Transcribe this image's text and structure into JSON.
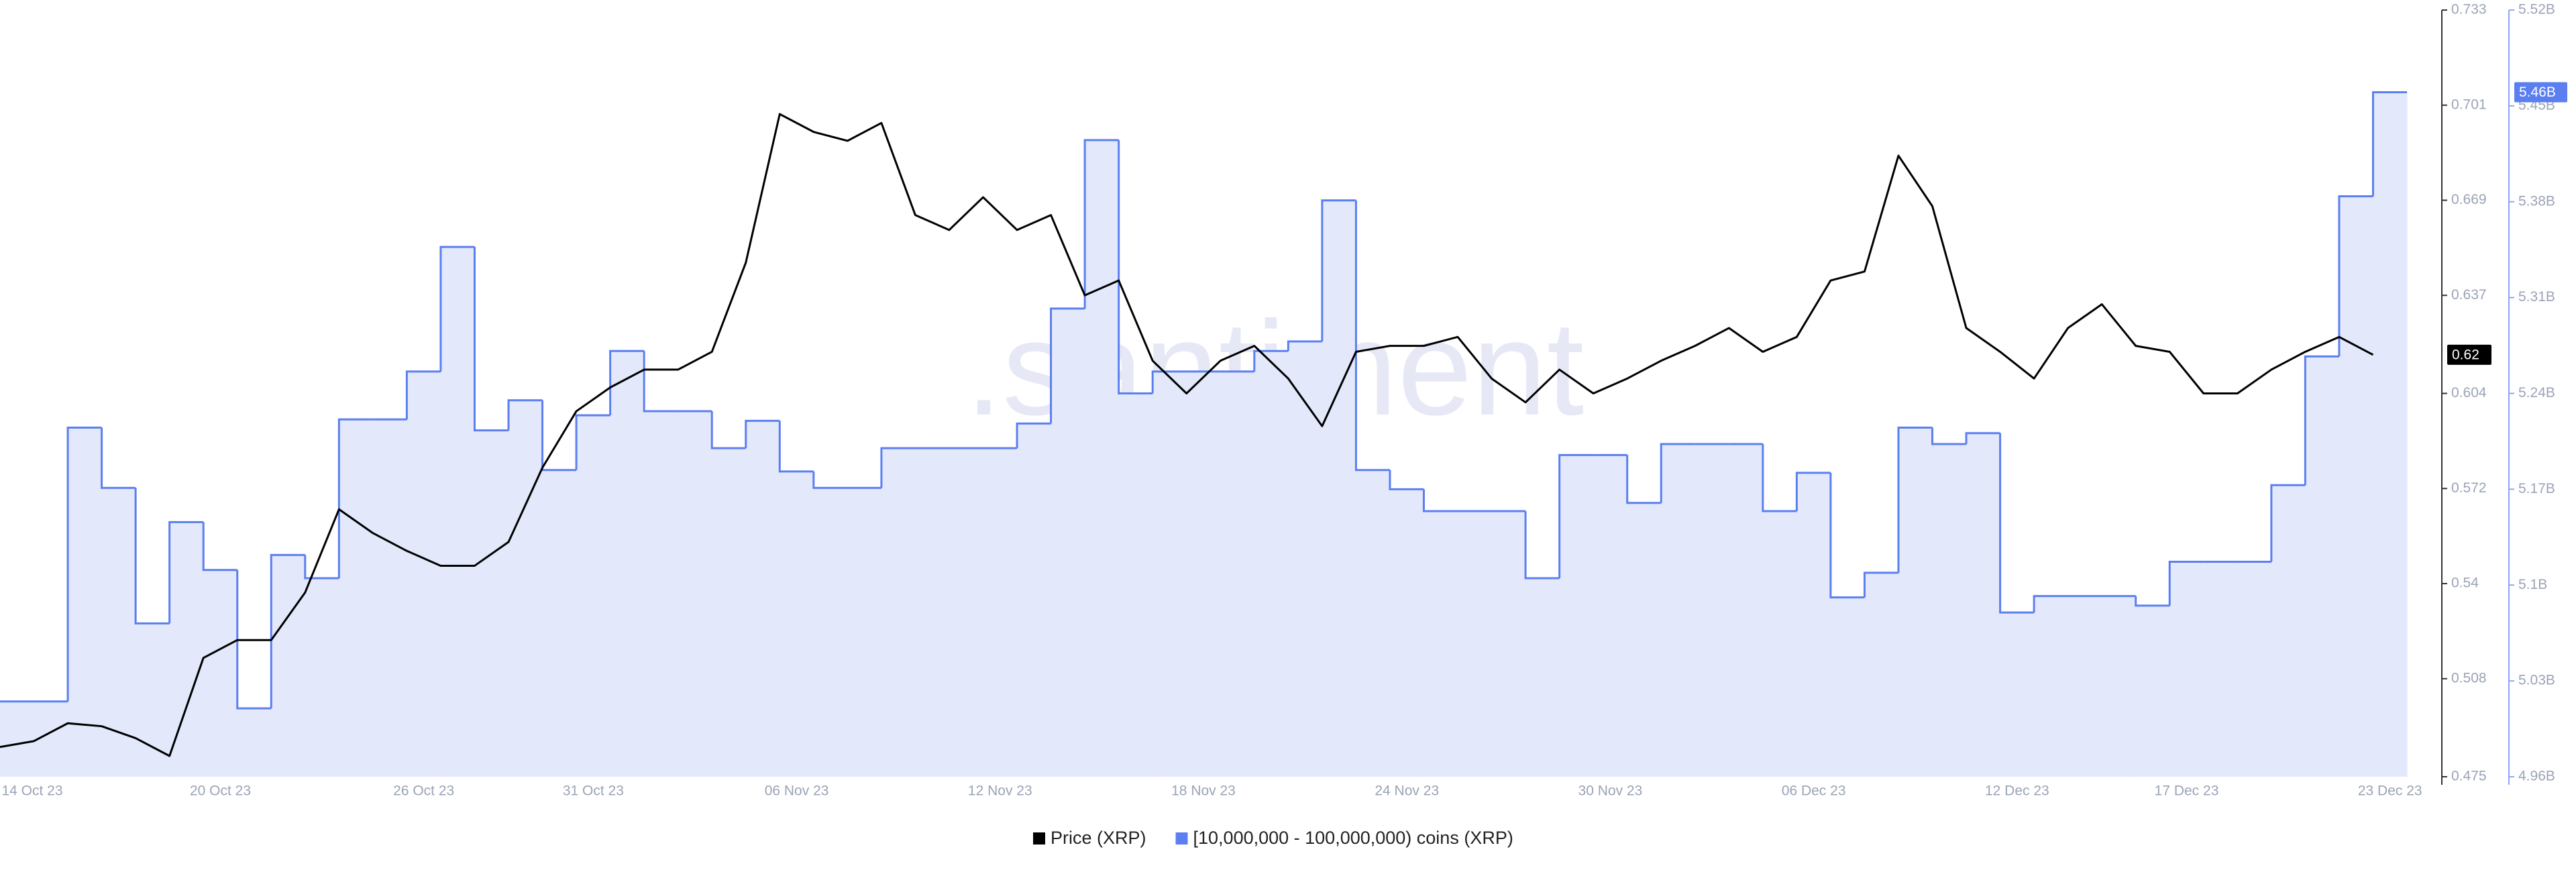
{
  "chart_data": {
    "type": "line",
    "watermark": ".santiment",
    "x": [
      "14 Oct 23",
      "15 Oct 23",
      "16 Oct 23",
      "17 Oct 23",
      "18 Oct 23",
      "19 Oct 23",
      "20 Oct 23",
      "21 Oct 23",
      "22 Oct 23",
      "23 Oct 23",
      "24 Oct 23",
      "25 Oct 23",
      "26 Oct 23",
      "27 Oct 23",
      "28 Oct 23",
      "29 Oct 23",
      "30 Oct 23",
      "31 Oct 23",
      "01 Nov 23",
      "02 Nov 23",
      "03 Nov 23",
      "04 Nov 23",
      "05 Nov 23",
      "06 Nov 23",
      "07 Nov 23",
      "08 Nov 23",
      "09 Nov 23",
      "10 Nov 23",
      "11 Nov 23",
      "12 Nov 23",
      "13 Nov 23",
      "14 Nov 23",
      "15 Nov 23",
      "16 Nov 23",
      "17 Nov 23",
      "18 Nov 23",
      "19 Nov 23",
      "20 Nov 23",
      "21 Nov 23",
      "22 Nov 23",
      "23 Nov 23",
      "24 Nov 23",
      "25 Nov 23",
      "26 Nov 23",
      "27 Nov 23",
      "28 Nov 23",
      "29 Nov 23",
      "30 Nov 23",
      "01 Dec 23",
      "02 Dec 23",
      "03 Dec 23",
      "04 Dec 23",
      "05 Dec 23",
      "06 Dec 23",
      "07 Dec 23",
      "08 Dec 23",
      "09 Dec 23",
      "10 Dec 23",
      "11 Dec 23",
      "12 Dec 23",
      "13 Dec 23",
      "14 Dec 23",
      "15 Dec 23",
      "16 Dec 23",
      "17 Dec 23",
      "18 Dec 23",
      "19 Dec 23",
      "20 Dec 23",
      "21 Dec 23",
      "22 Dec 23",
      "23 Dec 23"
    ],
    "xticks": [
      "14 Oct 23",
      "20 Oct 23",
      "26 Oct 23",
      "31 Oct 23",
      "06 Nov 23",
      "12 Nov 23",
      "18 Nov 23",
      "24 Nov 23",
      "30 Nov 23",
      "06 Dec 23",
      "12 Dec 23",
      "17 Dec 23",
      "23 Dec 23"
    ],
    "series": [
      {
        "name": "Price (XRP)",
        "color": "#000000",
        "axis": "y",
        "end_label": "0.62",
        "values": [
          0.485,
          0.487,
          0.493,
          0.492,
          0.488,
          0.482,
          0.515,
          0.521,
          0.521,
          0.537,
          0.565,
          0.557,
          0.551,
          0.546,
          0.546,
          0.554,
          0.579,
          0.598,
          0.606,
          0.612,
          0.612,
          0.618,
          0.648,
          0.698,
          0.692,
          0.689,
          0.695,
          0.664,
          0.659,
          0.67,
          0.659,
          0.664,
          0.637,
          0.642,
          0.615,
          0.604,
          0.615,
          0.62,
          0.609,
          0.593,
          0.618,
          0.62,
          0.62,
          0.623,
          0.609,
          0.601,
          0.612,
          0.604,
          0.609,
          0.615,
          0.62,
          0.626,
          0.618,
          0.623,
          0.642,
          0.645,
          0.684,
          0.667,
          0.626,
          0.618,
          0.609,
          0.626,
          0.634,
          0.62,
          0.618,
          0.604,
          0.604,
          0.612,
          0.618,
          0.623,
          0.617
        ]
      },
      {
        "name": "[10,000,000 - 100,000,000) coins (XRP)",
        "color": "#5b7ff0",
        "fill": "#e3e9fb",
        "step": true,
        "axis": "y2",
        "end_label": "5.46B",
        "values": [
          5015000000,
          5015000000,
          5215000000,
          5171000000,
          5072000000,
          5146000000,
          5111000000,
          5010000000,
          5122000000,
          5105000000,
          5221000000,
          5221000000,
          5256000000,
          5347000000,
          5213000000,
          5235000000,
          5184000000,
          5224000000,
          5271000000,
          5227000000,
          5227000000,
          5200000000,
          5220000000,
          5183000000,
          5171000000,
          5171000000,
          5200000000,
          5200000000,
          5200000000,
          5200000000,
          5218000000,
          5302000000,
          5425000000,
          5240000000,
          5256000000,
          5256000000,
          5256000000,
          5271000000,
          5278000000,
          5381000000,
          5184000000,
          5170000000,
          5154000000,
          5154000000,
          5154000000,
          5105000000,
          5195000000,
          5195000000,
          5160000000,
          5203000000,
          5203000000,
          5203000000,
          5154000000,
          5182000000,
          5091000000,
          5109000000,
          5215000000,
          5203000000,
          5211000000,
          5080000000,
          5092000000,
          5092000000,
          5092000000,
          5085000000,
          5117000000,
          5117000000,
          5117000000,
          5173000000,
          5267000000,
          5384000000,
          5460000000
        ]
      }
    ],
    "ylim": [
      0.475,
      0.733
    ],
    "yticks": [
      0.475,
      0.508,
      0.54,
      0.572,
      0.604,
      0.637,
      0.669,
      0.701,
      0.733
    ],
    "y2lim": [
      4960000000,
      5520000000
    ],
    "y2ticks": [
      {
        "value": 4960000000,
        "label": "4.96B"
      },
      {
        "value": 5030000000,
        "label": "5.03B"
      },
      {
        "value": 5100000000,
        "label": "5.1B"
      },
      {
        "value": 5170000000,
        "label": "5.17B"
      },
      {
        "value": 5240000000,
        "label": "5.24B"
      },
      {
        "value": 5310000000,
        "label": "5.31B"
      },
      {
        "value": 5380000000,
        "label": "5.38B"
      },
      {
        "value": 5450000000,
        "label": "5.45B"
      },
      {
        "value": 5520000000,
        "label": "5.52B"
      }
    ],
    "legend": "bottom"
  }
}
